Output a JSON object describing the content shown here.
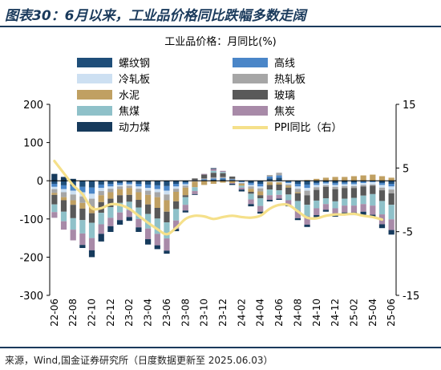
{
  "header": {
    "title": "图表30：6月以来，工业品价格同比跌幅多数走阔"
  },
  "footer": {
    "source": "来源，Wind,国金证券研究所（日度数据更新至 2025.06.03）"
  },
  "colors": {
    "螺纹钢": "#1f4e79",
    "高线": "#4a86c8",
    "冷轧板": "#cde0f2",
    "热轧板": "#a6a6a6",
    "水泥": "#c0a062",
    "玻璃": "#595959",
    "焦煤": "#8fc1c9",
    "焦炭": "#a88aa8",
    "动力煤": "#163a5c",
    "PPI": "#f5e08a"
  },
  "chart_data": {
    "type": "bar",
    "stacked": true,
    "legend_title": "工业品价格：月同比(%)",
    "legend_position": "top",
    "categories": [
      "22-06",
      "22-07",
      "22-08",
      "22-09",
      "22-10",
      "22-11",
      "22-12",
      "23-01",
      "23-02",
      "23-03",
      "23-04",
      "23-05",
      "23-06",
      "23-07",
      "23-08",
      "23-09",
      "23-10",
      "23-11",
      "23-12",
      "24-01",
      "24-02",
      "24-03",
      "24-04",
      "24-05",
      "24-06",
      "24-07",
      "24-08",
      "24-09",
      "24-10",
      "24-11",
      "24-12",
      "25-01",
      "25-02",
      "25-03",
      "25-04",
      "25-05",
      "25-06"
    ],
    "xtick_labels": [
      "22-06",
      "22-08",
      "22-10",
      "22-12",
      "23-02",
      "23-04",
      "23-06",
      "23-08",
      "23-10",
      "23-12",
      "24-02",
      "24-04",
      "24-06",
      "24-08",
      "24-10",
      "24-12",
      "25-02",
      "25-04",
      "25-06"
    ],
    "ylim": [
      -300,
      200
    ],
    "yticks": [
      -300,
      -200,
      -100,
      0,
      100,
      200
    ],
    "y2lim": [
      -15,
      15
    ],
    "y2ticks": [
      -15,
      -5,
      5,
      15
    ],
    "grid": false,
    "series": [
      {
        "name": "螺纹钢",
        "values": [
          -8,
          -12,
          -14,
          -16,
          -18,
          -10,
          -8,
          -6,
          -5,
          -8,
          -10,
          -12,
          -14,
          -8,
          -5,
          0,
          2,
          3,
          4,
          2,
          -2,
          -6,
          -8,
          6,
          8,
          -3,
          -8,
          -10,
          -6,
          -4,
          -6,
          -5,
          -5,
          -3,
          -2,
          -6,
          -8
        ]
      },
      {
        "name": "高线",
        "values": [
          -8,
          -10,
          -12,
          -14,
          -16,
          -9,
          -7,
          -5,
          -4,
          -7,
          -9,
          -10,
          -12,
          -7,
          -4,
          1,
          2,
          3,
          3,
          2,
          -2,
          -5,
          -7,
          5,
          6,
          -3,
          -7,
          -9,
          -5,
          -3,
          -5,
          -4,
          -4,
          -3,
          -2,
          -5,
          -7
        ]
      },
      {
        "name": "冷轧板",
        "values": [
          -6,
          -8,
          -10,
          -11,
          -13,
          -8,
          -6,
          -4,
          -4,
          -6,
          -7,
          -8,
          -10,
          -6,
          -4,
          -2,
          -1,
          0,
          0,
          -1,
          -2,
          -4,
          -5,
          -3,
          -4,
          -4,
          -6,
          -7,
          -6,
          -5,
          -5,
          -5,
          -5,
          -5,
          -6,
          -7,
          -8
        ]
      },
      {
        "name": "热轧板",
        "values": [
          -10,
          -13,
          -15,
          -17,
          -20,
          -11,
          -9,
          -7,
          -6,
          -9,
          -11,
          -13,
          -15,
          -8,
          -5,
          0,
          2,
          3,
          3,
          1,
          -2,
          -6,
          -8,
          4,
          7,
          -3,
          -9,
          -12,
          -7,
          -4,
          -6,
          -5,
          -5,
          -4,
          -3,
          -7,
          -10
        ]
      },
      {
        "name": "水泥",
        "values": [
          -5,
          -8,
          -12,
          -15,
          -18,
          -18,
          -17,
          -16,
          -18,
          -20,
          -25,
          -28,
          -30,
          -25,
          -20,
          -15,
          -10,
          -8,
          -5,
          -5,
          -5,
          -8,
          -10,
          -8,
          -6,
          -5,
          -3,
          2,
          5,
          8,
          10,
          10,
          12,
          14,
          16,
          12,
          8
        ]
      },
      {
        "name": "玻璃",
        "values": [
          -25,
          -30,
          -35,
          -30,
          -25,
          -28,
          -22,
          -20,
          -18,
          -20,
          -25,
          -28,
          -28,
          -20,
          -5,
          5,
          10,
          12,
          10,
          6,
          0,
          -5,
          -8,
          -12,
          -15,
          -18,
          -20,
          -25,
          -28,
          -30,
          -32,
          -28,
          -26,
          -24,
          -22,
          -28,
          -30
        ]
      },
      {
        "name": "焦煤",
        "values": [
          -20,
          -25,
          -30,
          -35,
          -40,
          -30,
          -28,
          -25,
          -22,
          -30,
          -38,
          -40,
          -42,
          -30,
          -20,
          -10,
          0,
          5,
          3,
          0,
          -5,
          -15,
          -20,
          -15,
          -12,
          -15,
          -25,
          -30,
          -20,
          -15,
          -18,
          -18,
          -20,
          -22,
          -30,
          -35,
          -38
        ]
      },
      {
        "name": "焦炭",
        "values": [
          -15,
          -22,
          -28,
          -30,
          -32,
          -25,
          -22,
          -20,
          -18,
          -22,
          -28,
          -30,
          -32,
          -22,
          -15,
          -8,
          2,
          5,
          3,
          -2,
          -5,
          -12,
          -15,
          -12,
          -10,
          -12,
          -20,
          -22,
          -18,
          -15,
          -16,
          -18,
          -18,
          -20,
          -24,
          -26,
          -28
        ]
      },
      {
        "name": "动力煤",
        "values": [
          18,
          10,
          5,
          -8,
          -18,
          -20,
          -15,
          -12,
          -10,
          -12,
          -14,
          -10,
          -8,
          -6,
          -5,
          -2,
          0,
          2,
          0,
          -3,
          -5,
          -6,
          -5,
          -4,
          -3,
          -4,
          -5,
          -6,
          -5,
          -5,
          -6,
          -6,
          -7,
          -8,
          -8,
          -10,
          -12
        ]
      },
      {
        "name": "PPI同比（右）",
        "axis": "right",
        "type": "line",
        "values": [
          6.1,
          4.2,
          2.3,
          0.9,
          -1.3,
          -1.3,
          -0.7,
          -0.8,
          -1.4,
          -2.5,
          -3.6,
          -4.6,
          -5.4,
          -4.4,
          -3.0,
          -2.5,
          -2.6,
          -3.0,
          -2.7,
          -2.5,
          -2.7,
          -2.8,
          -2.5,
          -1.4,
          -0.8,
          -0.8,
          -1.8,
          -2.8,
          -2.9,
          -2.5,
          -2.3,
          -2.3,
          -2.2,
          -2.5,
          -2.7,
          -3.1,
          null
        ]
      }
    ]
  }
}
